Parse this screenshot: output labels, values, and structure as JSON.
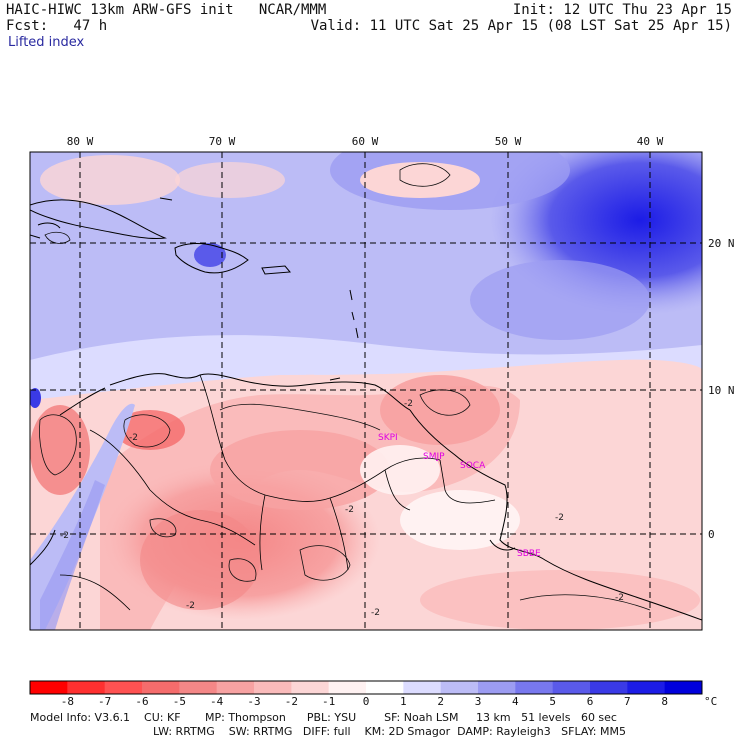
{
  "header": {
    "title": "HAIC-HIWC 13km ARW-GFS init   NCAR/MMM",
    "forecast": "Fcst:   47 h",
    "init": "Init: 12 UTC Thu 23 Apr 15",
    "valid": "Valid: 11 UTC Sat 25 Apr 15 (08 LST Sat 25 Apr 15)",
    "field": "Lifted index"
  },
  "map": {
    "lon_labels": [
      "80 W",
      "70 W",
      "60 W",
      "50 W",
      "40 W"
    ],
    "lat_labels": [
      "20 N",
      "10 N",
      "0"
    ],
    "stations": [
      "SKPI",
      "SMJP",
      "SOCA",
      "SBBE"
    ],
    "contour_labels": [
      "-2",
      "-2",
      "-2",
      "-2",
      "-2",
      "-2",
      "-2",
      "-2"
    ]
  },
  "colorbar": {
    "labels": [
      "-8",
      "-7",
      "-6",
      "-5",
      "-4",
      "-3",
      "-2",
      "-1",
      "0",
      "1",
      "2",
      "3",
      "4",
      "5",
      "6",
      "7",
      "8"
    ],
    "unit": "°C",
    "colors": [
      "#ff0000",
      "#ff3030",
      "#ff5252",
      "#f56c6c",
      "#f48787",
      "#f7a2a2",
      "#fabbbb",
      "#fcd6d6",
      "#fff2f2",
      "#ffffff",
      "#dcdcff",
      "#bcbcf6",
      "#9c9cf2",
      "#7878ee",
      "#5a5aea",
      "#3a3ae6",
      "#1c1ce6",
      "#0000dc"
    ]
  },
  "footer": {
    "line1": "Model Info: V3.6.1    CU: KF       MP: Thompson      PBL: YSU        SF: Noah LSM     13 km   51 levels   60 sec",
    "line2": "LW: RRTMG    SW: RRTMG   DIFF: full    KM: 2D Smagor  DAMP: Rayleigh3   SFLAY: MM5"
  }
}
